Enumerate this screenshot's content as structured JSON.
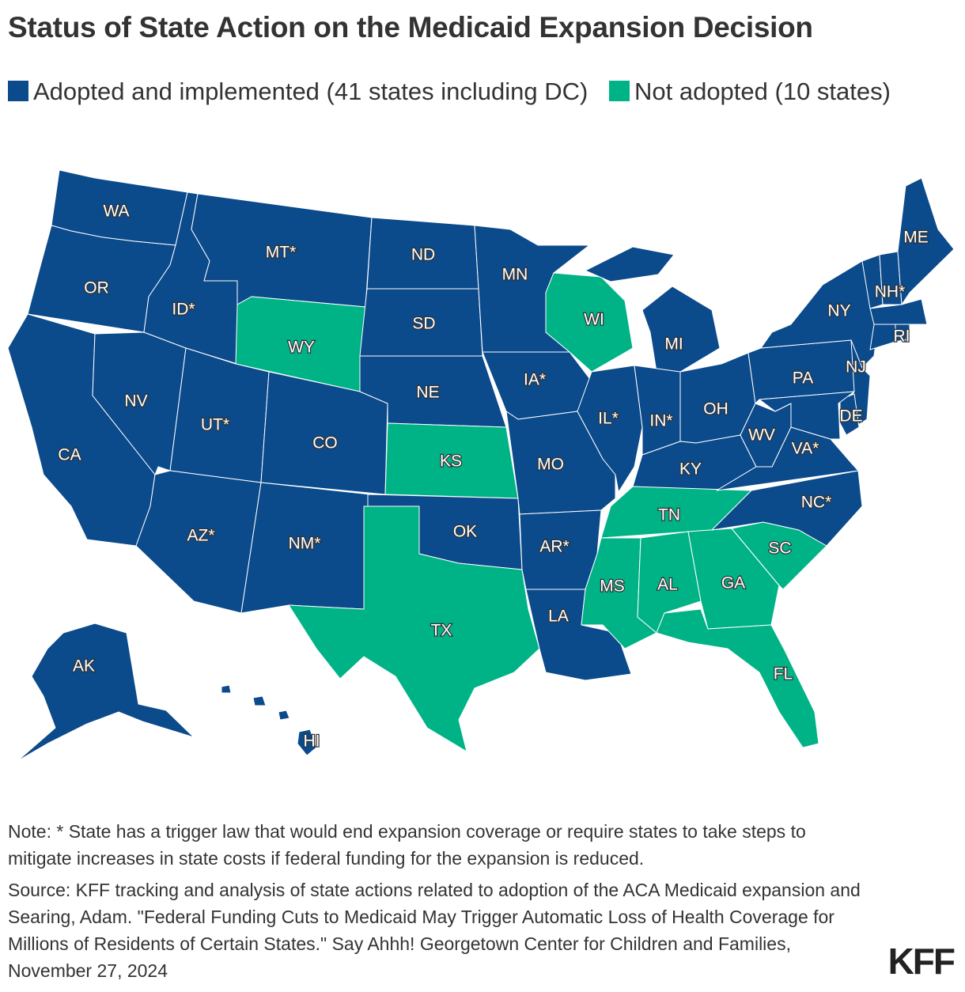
{
  "title": "Status of State Action on the Medicaid Expansion Decision",
  "legend": [
    {
      "label": "Adopted and implemented (41 states including DC)",
      "color": "#0b4a8b"
    },
    {
      "label": "Not adopted (10 states)",
      "color": "#00b386"
    }
  ],
  "states": [
    {
      "abbr": "WA",
      "label": "WA",
      "status": "adopted"
    },
    {
      "abbr": "OR",
      "label": "OR",
      "status": "adopted"
    },
    {
      "abbr": "CA",
      "label": "CA",
      "status": "adopted"
    },
    {
      "abbr": "NV",
      "label": "NV",
      "status": "adopted"
    },
    {
      "abbr": "ID",
      "label": "ID*",
      "status": "adopted"
    },
    {
      "abbr": "MT",
      "label": "MT*",
      "status": "adopted"
    },
    {
      "abbr": "WY",
      "label": "WY",
      "status": "not_adopted"
    },
    {
      "abbr": "UT",
      "label": "UT*",
      "status": "adopted"
    },
    {
      "abbr": "CO",
      "label": "CO",
      "status": "adopted"
    },
    {
      "abbr": "AZ",
      "label": "AZ*",
      "status": "adopted"
    },
    {
      "abbr": "NM",
      "label": "NM*",
      "status": "adopted"
    },
    {
      "abbr": "ND",
      "label": "ND",
      "status": "adopted"
    },
    {
      "abbr": "SD",
      "label": "SD",
      "status": "adopted"
    },
    {
      "abbr": "NE",
      "label": "NE",
      "status": "adopted"
    },
    {
      "abbr": "KS",
      "label": "KS",
      "status": "not_adopted"
    },
    {
      "abbr": "OK",
      "label": "OK",
      "status": "adopted"
    },
    {
      "abbr": "TX",
      "label": "TX",
      "status": "not_adopted"
    },
    {
      "abbr": "MN",
      "label": "MN",
      "status": "adopted"
    },
    {
      "abbr": "IA",
      "label": "IA*",
      "status": "adopted"
    },
    {
      "abbr": "MO",
      "label": "MO",
      "status": "adopted"
    },
    {
      "abbr": "AR",
      "label": "AR*",
      "status": "adopted"
    },
    {
      "abbr": "LA",
      "label": "LA",
      "status": "adopted"
    },
    {
      "abbr": "WI",
      "label": "WI",
      "status": "not_adopted"
    },
    {
      "abbr": "IL",
      "label": "IL*",
      "status": "adopted"
    },
    {
      "abbr": "MI",
      "label": "MI",
      "status": "adopted"
    },
    {
      "abbr": "IN",
      "label": "IN*",
      "status": "adopted"
    },
    {
      "abbr": "OH",
      "label": "OH",
      "status": "adopted"
    },
    {
      "abbr": "KY",
      "label": "KY",
      "status": "adopted"
    },
    {
      "abbr": "TN",
      "label": "TN",
      "status": "not_adopted"
    },
    {
      "abbr": "MS",
      "label": "MS",
      "status": "not_adopted"
    },
    {
      "abbr": "AL",
      "label": "AL",
      "status": "not_adopted"
    },
    {
      "abbr": "GA",
      "label": "GA",
      "status": "not_adopted"
    },
    {
      "abbr": "FL",
      "label": "FL",
      "status": "not_adopted"
    },
    {
      "abbr": "SC",
      "label": "SC",
      "status": "not_adopted"
    },
    {
      "abbr": "NC",
      "label": "NC*",
      "status": "adopted"
    },
    {
      "abbr": "VA",
      "label": "VA*",
      "status": "adopted"
    },
    {
      "abbr": "WV",
      "label": "WV",
      "status": "adopted"
    },
    {
      "abbr": "PA",
      "label": "PA",
      "status": "adopted"
    },
    {
      "abbr": "NY",
      "label": "NY",
      "status": "adopted"
    },
    {
      "abbr": "NJ",
      "label": "NJ",
      "status": "adopted"
    },
    {
      "abbr": "DE",
      "label": "DE",
      "status": "adopted"
    },
    {
      "abbr": "MD",
      "label": "",
      "status": "adopted"
    },
    {
      "abbr": "VT",
      "label": "",
      "status": "adopted"
    },
    {
      "abbr": "NH",
      "label": "NH*",
      "status": "adopted"
    },
    {
      "abbr": "ME",
      "label": "ME",
      "status": "adopted"
    },
    {
      "abbr": "MA",
      "label": "",
      "status": "adopted"
    },
    {
      "abbr": "RI",
      "label": "RI",
      "status": "adopted"
    },
    {
      "abbr": "CT",
      "label": "",
      "status": "adopted"
    },
    {
      "abbr": "AK",
      "label": "AK",
      "status": "adopted"
    },
    {
      "abbr": "HI",
      "label": "HI",
      "status": "adopted"
    }
  ],
  "notes": {
    "note": "Note: * State has a trigger law that would end expansion coverage or require states to take steps to mitigate increases in state costs if federal funding for the expansion is reduced.",
    "source": "Source: KFF tracking and analysis of state actions related to adoption of the ACA Medicaid expansion and Searing, Adam. \"Federal Funding Cuts to Medicaid May Trigger Automatic Loss of Health Coverage for Millions of Residents of Certain States.\" Say Ahhh! Georgetown Center for Children and Families, November 27, 2024"
  },
  "logo": "KFF"
}
